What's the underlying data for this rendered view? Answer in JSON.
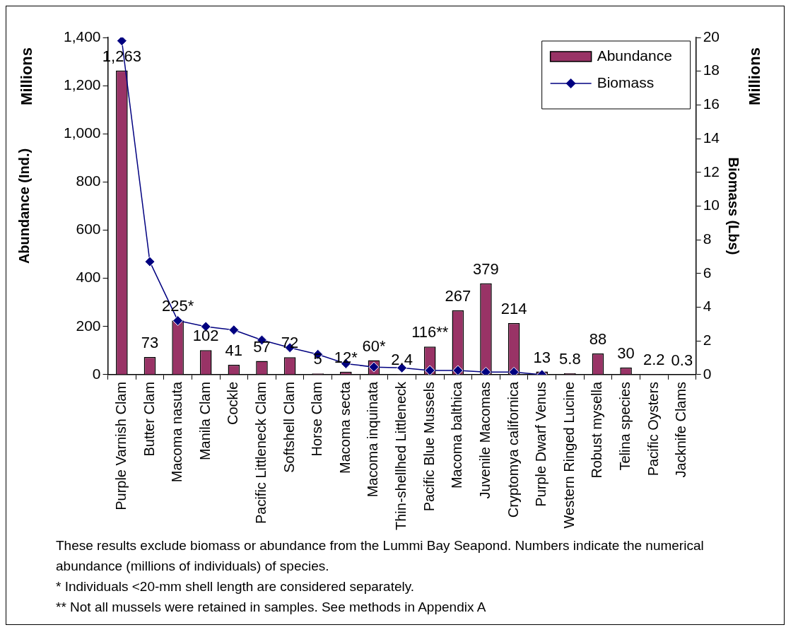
{
  "chart_data": {
    "type": "bar",
    "categories": [
      "Purple Varnish Clam",
      "Butter Clam",
      "Macoma nasuta",
      "Manila Clam",
      "Cockle",
      "Pacific Littleneck Clam",
      "Softshell Clam",
      "Horse Clam",
      "Macoma secta",
      "Macoma inquinata",
      "Thin-shellhed Littleneck",
      "Pacific Blue Mussels",
      "Macoma balthica",
      "Juvenile Macomas",
      "Cryptomya californica",
      "Purple Dwarf Venus",
      "Western Ringed Lucine",
      "Robust mysella",
      "Telina species",
      "Pacific Oysters",
      "Jacknife Clams"
    ],
    "series": [
      {
        "name": "Abundance",
        "color": "#993366",
        "values": [
          1263,
          73,
          225,
          102,
          41,
          57,
          72,
          5,
          12,
          60,
          2.4,
          116,
          267,
          379,
          214,
          13,
          5.8,
          88,
          30,
          2.2,
          0.3
        ],
        "value_labels": [
          "1,263",
          "73",
          "225*",
          "102",
          "41",
          "57",
          "72",
          "5",
          "12*",
          "60*",
          "2.4",
          "116**",
          "267",
          "379",
          "214",
          "13",
          "5.8",
          "88",
          "30",
          "2.2",
          "0.3"
        ]
      },
      {
        "name": "Biomass",
        "type": "line",
        "axis": "y2",
        "color": "#000080",
        "marker": "diamond",
        "values": [
          19.8,
          6.7,
          3.2,
          2.85,
          2.65,
          2.05,
          1.6,
          1.2,
          0.65,
          0.45,
          0.4,
          0.25,
          0.25,
          0.15,
          0.15,
          0,
          null,
          null,
          null,
          null,
          null
        ]
      }
    ],
    "ylabel": "Abundance (Ind.)",
    "y2label": "Biomass (Lbs)",
    "ylim": [
      0,
      1400
    ],
    "yticks": [
      0,
      {
        "value": 200,
        "label": "200"
      },
      {
        "value": 400,
        "label": "400"
      },
      {
        "value": 600,
        "label": "600"
      },
      {
        "value": 800,
        "label": "800"
      },
      {
        "value": 1000,
        "label": "1,000"
      },
      {
        "value": 1200,
        "label": "1,200"
      },
      {
        "value": 1400,
        "label": "1,400"
      }
    ],
    "y2lim": [
      0,
      20
    ],
    "y2ticks": [
      0,
      2,
      4,
      6,
      8,
      10,
      12,
      14,
      16,
      18,
      20
    ],
    "legend": "top right",
    "grid": false,
    "annotations": [
      "Millions",
      "Millions",
      "These results exclude biomass or abundance from the Lummi Bay Seapond. Numbers indicate the numerical abundance (millions of individuals) of species.",
      "* Individuals <20-mm shell length are considered separately.",
      "** Not all mussels were retained in samples. See methods in Appendix A"
    ]
  }
}
